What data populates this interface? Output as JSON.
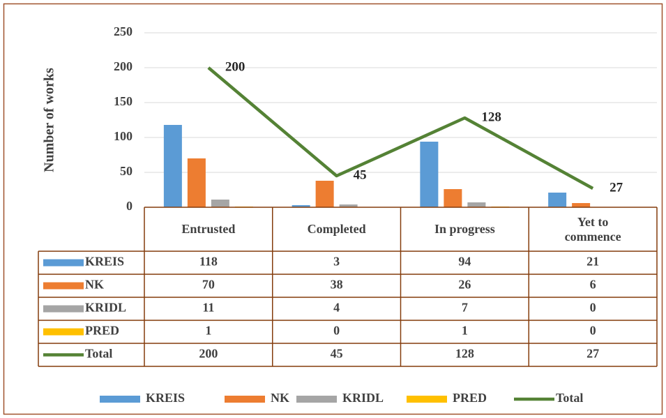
{
  "chart_data": {
    "type": "bar",
    "y_label": "Number of works",
    "categories": [
      "Entrusted",
      "Completed",
      "In progress",
      "Yet to commence"
    ],
    "series": [
      {
        "name": "KREIS",
        "color": "#5B9BD5",
        "type": "bar",
        "values": [
          118,
          3,
          94,
          21
        ]
      },
      {
        "name": "NK",
        "color": "#ED7D31",
        "type": "bar",
        "values": [
          70,
          38,
          26,
          6
        ]
      },
      {
        "name": "KRIDL",
        "color": "#A5A5A5",
        "type": "bar",
        "values": [
          11,
          4,
          7,
          0
        ]
      },
      {
        "name": "PRED",
        "color": "#FFC000",
        "type": "bar",
        "values": [
          1,
          0,
          1,
          0
        ]
      },
      {
        "name": "Total",
        "color": "#548235",
        "type": "line",
        "values": [
          200,
          45,
          128,
          27
        ]
      }
    ],
    "ylim": [
      0,
      250
    ],
    "yticks": [
      0,
      50,
      100,
      150,
      200,
      250
    ],
    "grid": true,
    "legend": "bottom"
  }
}
